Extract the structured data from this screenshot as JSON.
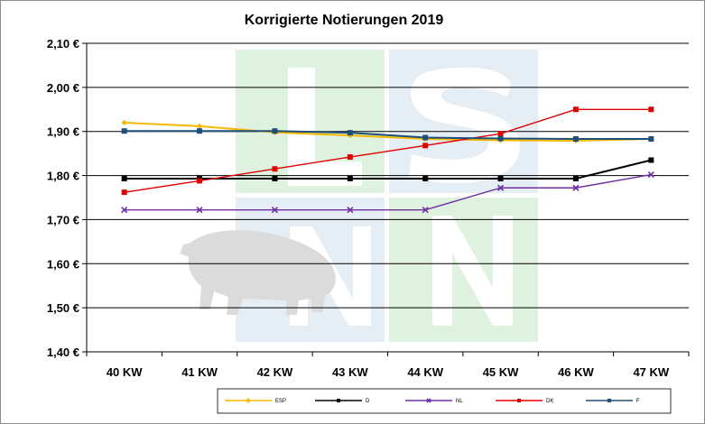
{
  "chart_data": {
    "type": "line",
    "title": "Korrigierte Notierungen 2019",
    "xlabel": "",
    "ylabel": "",
    "categories": [
      "40 KW",
      "41 KW",
      "42 KW",
      "43 KW",
      "44 KW",
      "45 KW",
      "46 KW",
      "47 KW"
    ],
    "yticks": [
      "1,40 €",
      "1,50 €",
      "1,60 €",
      "1,70 €",
      "1,80 €",
      "1,90 €",
      "2,00 €",
      "2,10 €"
    ],
    "ylim": [
      1.4,
      2.1
    ],
    "grid": "horizontal",
    "legend_position": "bottom",
    "series": [
      {
        "name": "ESP",
        "color": "#f5b800",
        "marker": "diamond",
        "values": [
          1.92,
          1.912,
          1.898,
          1.891,
          1.883,
          1.88,
          1.879,
          1.883
        ]
      },
      {
        "name": "D",
        "color": "#000000",
        "marker": "square",
        "values": [
          1.793,
          1.793,
          1.793,
          1.793,
          1.793,
          1.793,
          1.793,
          1.835
        ]
      },
      {
        "name": "NL",
        "color": "#7030a0",
        "marker": "cross",
        "values": [
          1.722,
          1.722,
          1.722,
          1.722,
          1.722,
          1.772,
          1.772,
          1.802
        ]
      },
      {
        "name": "DK",
        "color": "#e00000",
        "marker": "square",
        "values": [
          1.762,
          1.788,
          1.815,
          1.842,
          1.868,
          1.895,
          1.95,
          1.95
        ]
      },
      {
        "name": "F",
        "color": "#1f4e79",
        "marker": "square",
        "values": [
          1.901,
          1.901,
          1.901,
          1.897,
          1.886,
          1.884,
          1.883,
          1.883
        ]
      }
    ]
  }
}
